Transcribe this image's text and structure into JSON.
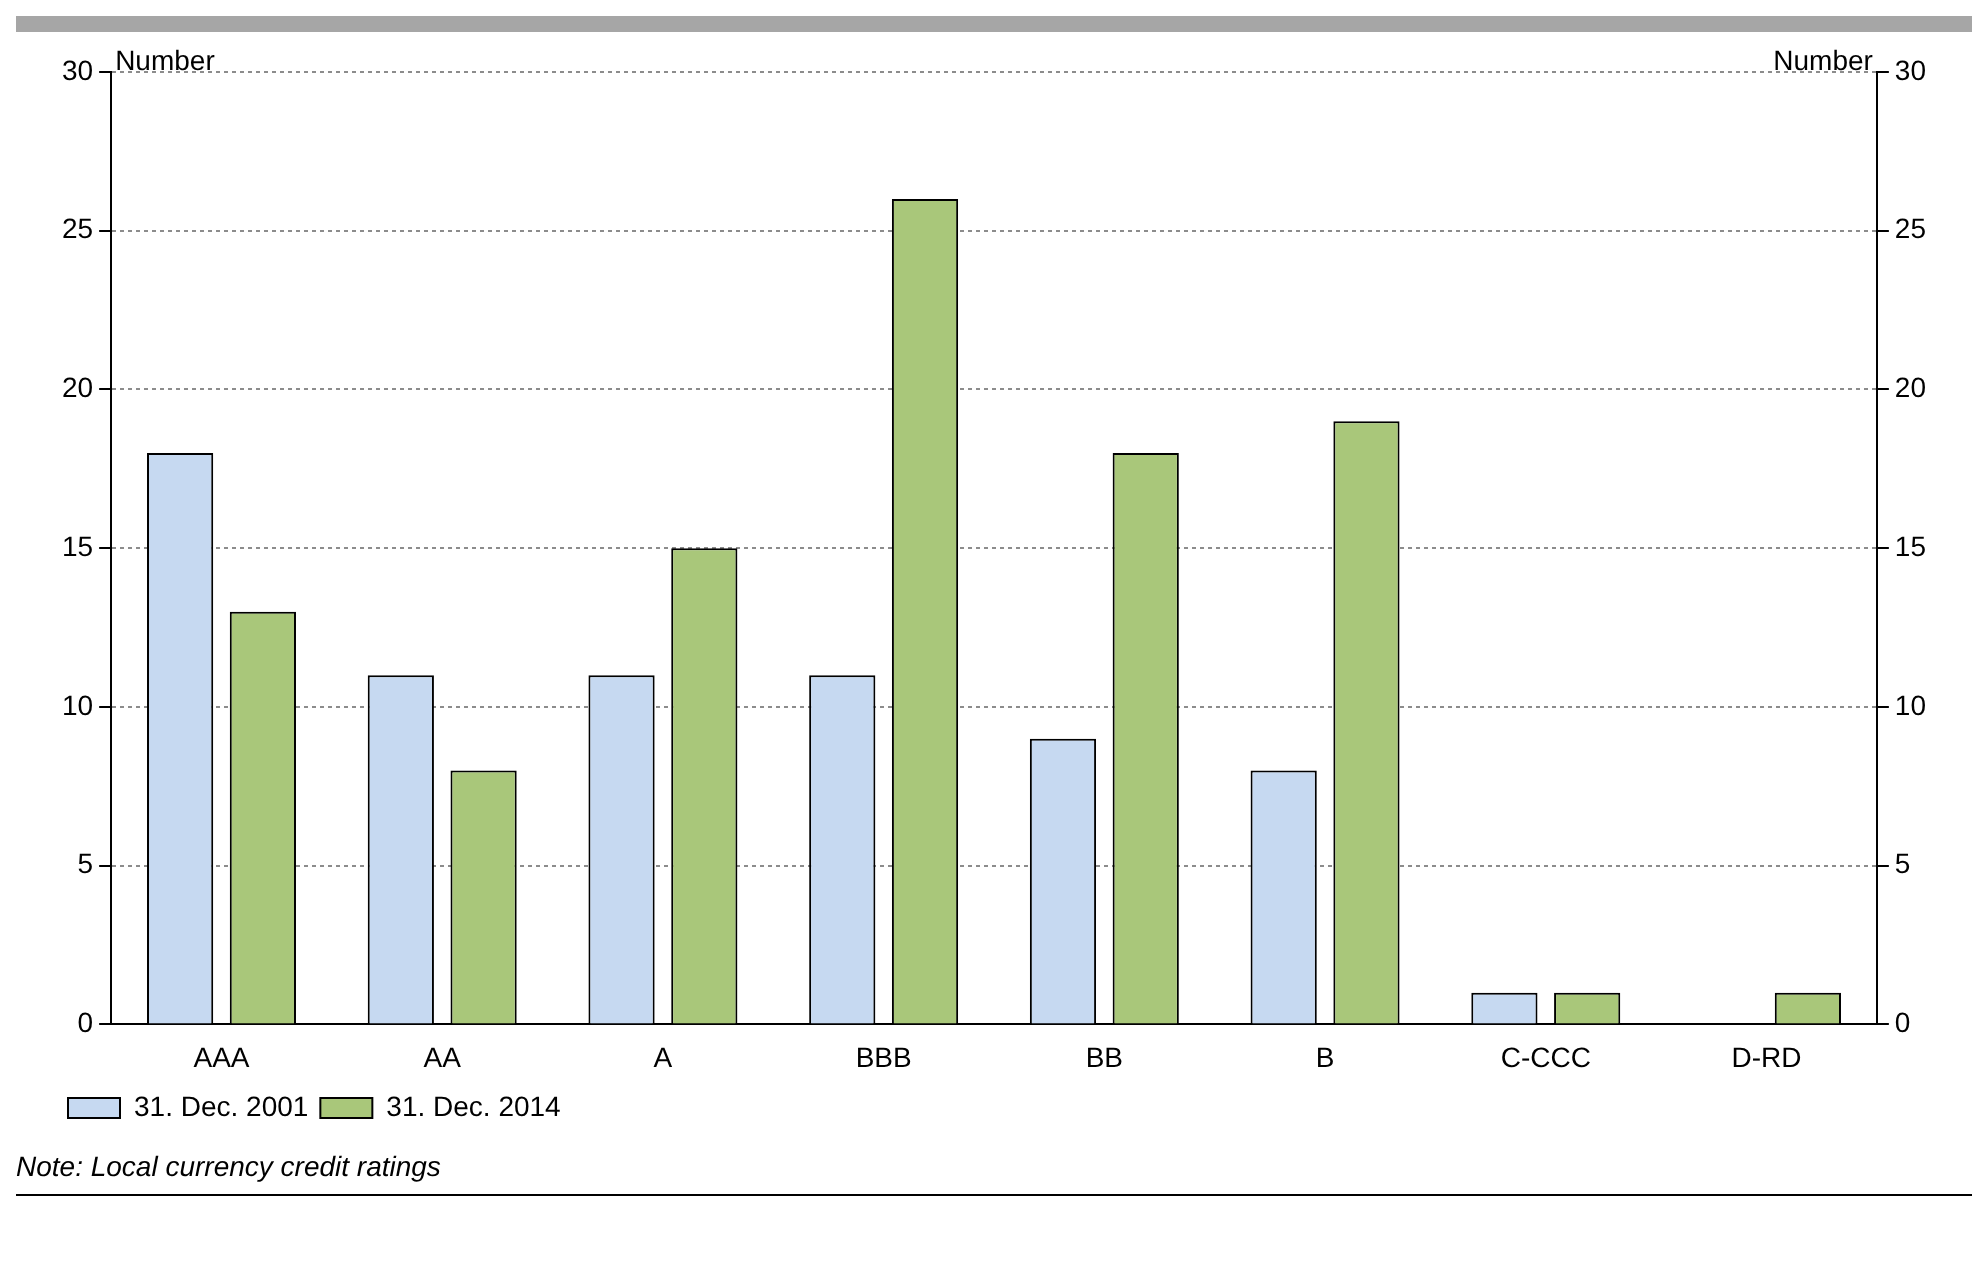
{
  "chart_data": {
    "type": "bar",
    "ylabel": "Number",
    "y2label": "Number",
    "categories": [
      "AAA",
      "AA",
      "A",
      "BBB",
      "BB",
      "B",
      "C-CCC",
      "D-RD"
    ],
    "series": [
      {
        "name": "31. Dec. 2001",
        "color": "#c6d9f1",
        "values": [
          18,
          11,
          11,
          11,
          9,
          8,
          1,
          0
        ]
      },
      {
        "name": "31. Dec. 2014",
        "color": "#a9c77a",
        "values": [
          13,
          8,
          15,
          26,
          18,
          19,
          1,
          1
        ]
      }
    ],
    "ylim": [
      0,
      30
    ],
    "yticks": [
      0,
      5,
      10,
      15,
      20,
      25,
      30
    ],
    "y2lim": [
      0,
      30
    ],
    "y2ticks": [
      0,
      5,
      10,
      15,
      20,
      25,
      30
    ],
    "grid": "y",
    "legend": "bottom left",
    "annotations": [
      "Note: Local currency credit ratings"
    ]
  }
}
